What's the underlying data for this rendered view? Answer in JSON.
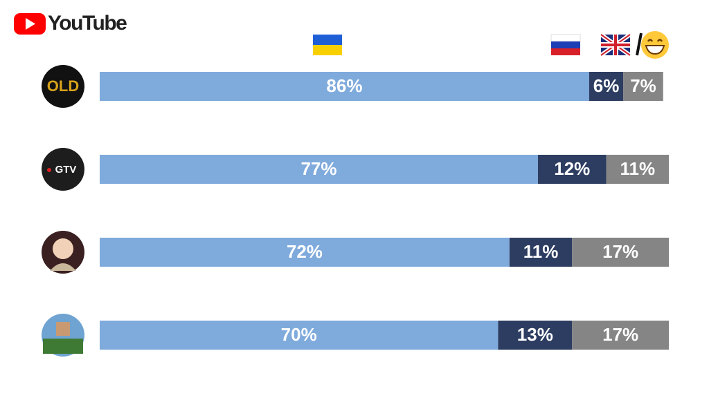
{
  "chart_data": {
    "type": "stacked-bar",
    "title": "YouTube",
    "categories": [
      null,
      null,
      null,
      null
    ],
    "series": [
      {
        "color": "#7faadc",
        "values": [
          86,
          77,
          72,
          70
        ],
        "value_labels": [
          "86%",
          "77%",
          "72%",
          "70%"
        ]
      },
      {
        "color": "#2d3d61",
        "values": [
          6,
          12,
          11,
          13
        ],
        "value_labels": [
          "6%",
          "12%",
          "11%",
          "13%"
        ]
      },
      {
        "color": "#858585",
        "values": [
          7,
          11,
          17,
          17
        ],
        "value_labels": [
          "7%",
          "11%",
          "17%",
          "17%"
        ]
      }
    ],
    "xlim": [
      0,
      100
    ]
  }
}
